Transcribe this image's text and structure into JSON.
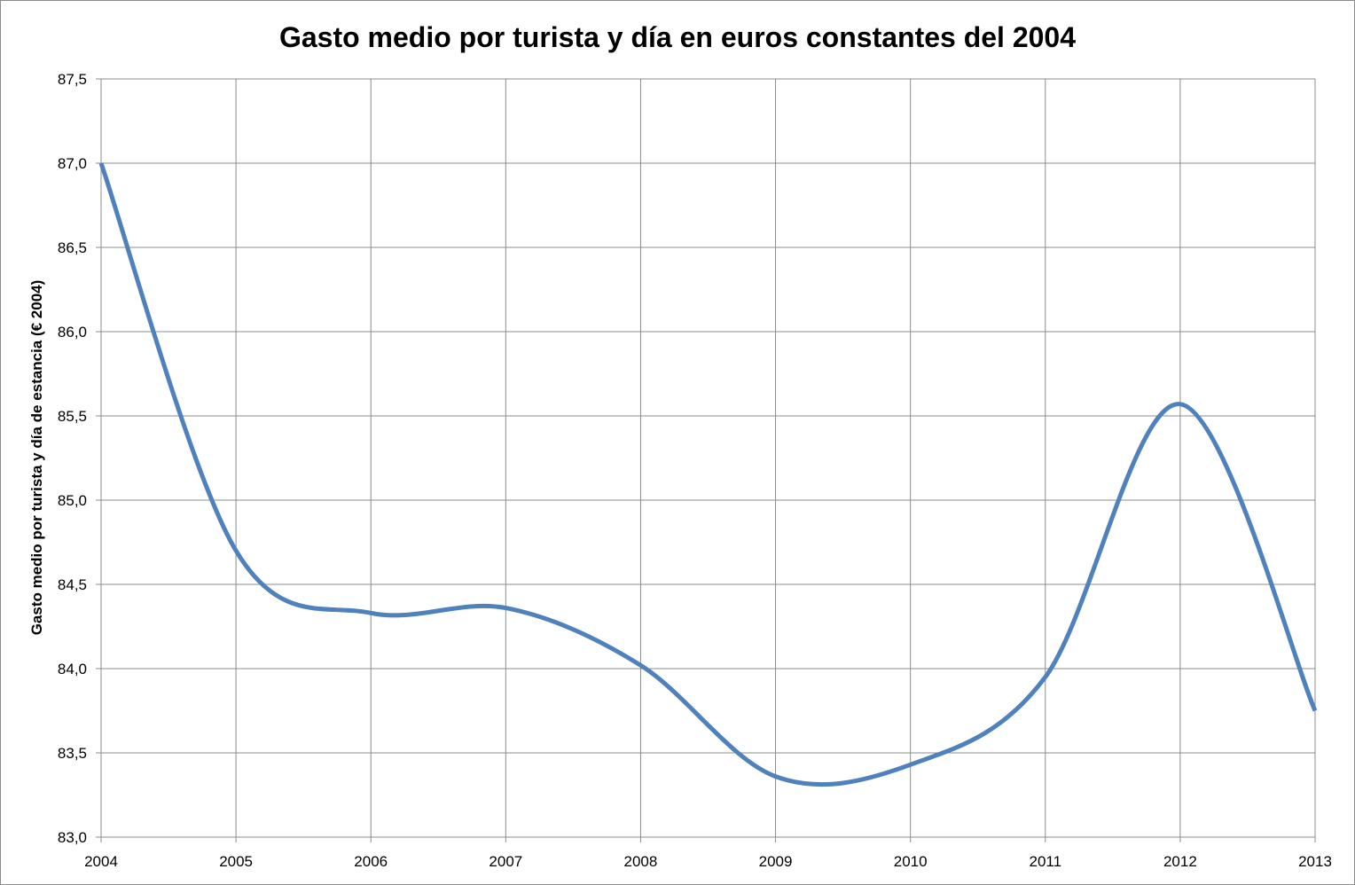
{
  "chart_data": {
    "type": "line",
    "title": "Gasto medio por turista y día en euros constantes del 2004",
    "xlabel": "",
    "ylabel": "Gasto medio por turista  y día de estancia (€ 2004)",
    "categories": [
      "2004",
      "2005",
      "2006",
      "2007",
      "2008",
      "2009",
      "2010",
      "2011",
      "2012",
      "2013"
    ],
    "series": [
      {
        "name": "Gasto medio por turista y día",
        "color": "#4f81bd",
        "values": [
          87.0,
          84.7,
          84.33,
          84.36,
          84.02,
          83.36,
          83.43,
          83.95,
          85.57,
          83.75
        ]
      }
    ],
    "ylim": [
      83.0,
      87.5
    ],
    "yticks": [
      "83,0",
      "83,5",
      "84,0",
      "84,5",
      "85,0",
      "85,5",
      "86,0",
      "86,5",
      "87,0",
      "87,5"
    ],
    "ytick_values": [
      83.0,
      83.5,
      84.0,
      84.5,
      85.0,
      85.5,
      86.0,
      86.5,
      87.0,
      87.5
    ],
    "grid": true,
    "legend": "none",
    "smooth": true
  }
}
